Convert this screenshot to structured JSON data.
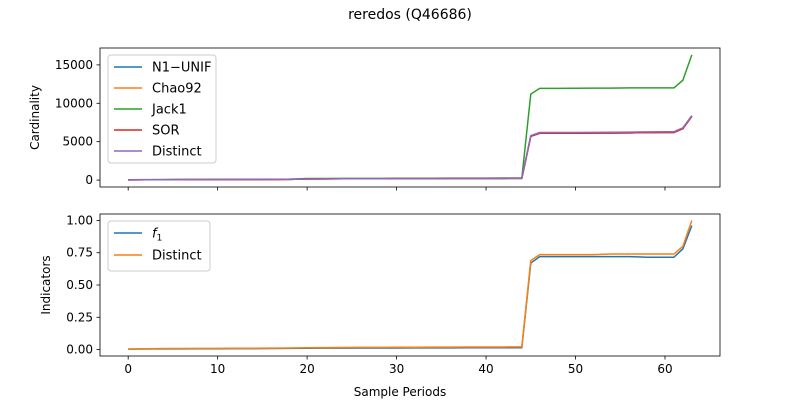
{
  "figure_title": "reredos (Q46686)",
  "chart_data": [
    {
      "type": "line",
      "ylabel": "Cardinality",
      "xlabel": "",
      "xlim": [
        -3.15,
        66.15
      ],
      "ylim": [
        -900,
        17200
      ],
      "xticks": [
        0,
        10,
        20,
        30,
        40,
        50,
        60
      ],
      "yticks": [
        0,
        5000,
        10000,
        15000
      ],
      "ytick_labels": [
        "0",
        "5000",
        "10000",
        "15000"
      ],
      "show_xtick_labels": false,
      "grid": false,
      "legend_position": "top-left",
      "x": [
        0,
        2,
        4,
        6,
        8,
        10,
        12,
        14,
        16,
        18,
        20,
        22,
        24,
        26,
        28,
        30,
        32,
        34,
        36,
        38,
        40,
        42,
        44,
        45,
        46,
        48,
        50,
        52,
        54,
        56,
        58,
        60,
        61,
        62,
        63
      ],
      "series": [
        {
          "name": "N1−UNIF",
          "color": "#1f77b4",
          "values": [
            30,
            40,
            50,
            55,
            60,
            65,
            70,
            75,
            80,
            90,
            150,
            160,
            170,
            175,
            180,
            185,
            190,
            195,
            200,
            205,
            210,
            215,
            220,
            5700,
            6100,
            6100,
            6100,
            6120,
            6130,
            6150,
            6180,
            6200,
            6200,
            6700,
            8300
          ]
        },
        {
          "name": "Chao92",
          "color": "#ff7f0e",
          "values": [
            30,
            40,
            50,
            55,
            60,
            65,
            70,
            75,
            80,
            90,
            150,
            160,
            170,
            175,
            180,
            185,
            190,
            195,
            200,
            205,
            210,
            215,
            220,
            5700,
            6100,
            6100,
            6100,
            6120,
            6130,
            6150,
            6180,
            6200,
            6200,
            6700,
            8300
          ]
        },
        {
          "name": "Jack1",
          "color": "#2ca02c",
          "values": [
            40,
            55,
            70,
            75,
            80,
            90,
            95,
            100,
            110,
            120,
            200,
            210,
            220,
            225,
            230,
            235,
            240,
            245,
            250,
            255,
            260,
            265,
            270,
            11200,
            11950,
            11950,
            11960,
            11970,
            11980,
            12000,
            12000,
            12000,
            12000,
            13000,
            16300
          ]
        },
        {
          "name": "SOR",
          "color": "#d62728",
          "values": [
            30,
            40,
            50,
            55,
            60,
            65,
            70,
            75,
            80,
            90,
            150,
            160,
            170,
            175,
            180,
            185,
            190,
            195,
            200,
            205,
            210,
            215,
            220,
            5700,
            6100,
            6100,
            6100,
            6120,
            6130,
            6150,
            6180,
            6200,
            6200,
            6700,
            8300
          ]
        },
        {
          "name": "Distinct",
          "color": "#9467bd",
          "values": [
            30,
            40,
            50,
            55,
            60,
            65,
            70,
            75,
            80,
            90,
            150,
            160,
            170,
            175,
            180,
            185,
            190,
            195,
            200,
            205,
            210,
            215,
            220,
            5800,
            6200,
            6200,
            6200,
            6220,
            6230,
            6250,
            6280,
            6300,
            6300,
            6800,
            8400
          ]
        }
      ]
    },
    {
      "type": "line",
      "ylabel": "Indicators",
      "xlabel": "Sample Periods",
      "xlim": [
        -3.15,
        66.15
      ],
      "ylim": [
        -0.05,
        1.05
      ],
      "xticks": [
        0,
        10,
        20,
        30,
        40,
        50,
        60
      ],
      "yticks": [
        0,
        0.25,
        0.5,
        0.75,
        1.0
      ],
      "ytick_labels": [
        "0.00",
        "0.25",
        "0.50",
        "0.75",
        "1.00"
      ],
      "show_xtick_labels": true,
      "grid": false,
      "legend_position": "top-left",
      "x": [
        0,
        2,
        4,
        6,
        8,
        10,
        12,
        14,
        16,
        18,
        20,
        22,
        24,
        26,
        28,
        30,
        32,
        34,
        36,
        38,
        40,
        42,
        44,
        45,
        46,
        48,
        50,
        52,
        54,
        56,
        58,
        60,
        61,
        62,
        63
      ],
      "series": [
        {
          "name": "f1",
          "label_main": "f",
          "label_sub": "1",
          "color": "#1f77b4",
          "values": [
            0.003,
            0.004,
            0.005,
            0.005,
            0.006,
            0.006,
            0.007,
            0.007,
            0.008,
            0.009,
            0.01,
            0.011,
            0.011,
            0.012,
            0.012,
            0.012,
            0.013,
            0.013,
            0.013,
            0.014,
            0.014,
            0.014,
            0.014,
            0.67,
            0.72,
            0.72,
            0.72,
            0.72,
            0.72,
            0.72,
            0.715,
            0.715,
            0.715,
            0.78,
            0.96
          ]
        },
        {
          "name": "Distinct",
          "color": "#ff7f0e",
          "values": [
            0.004,
            0.006,
            0.008,
            0.008,
            0.009,
            0.009,
            0.01,
            0.01,
            0.011,
            0.012,
            0.014,
            0.015,
            0.016,
            0.017,
            0.017,
            0.018,
            0.018,
            0.019,
            0.019,
            0.02,
            0.02,
            0.02,
            0.021,
            0.69,
            0.735,
            0.735,
            0.735,
            0.735,
            0.74,
            0.74,
            0.74,
            0.74,
            0.74,
            0.8,
            1.0
          ]
        }
      ]
    }
  ]
}
